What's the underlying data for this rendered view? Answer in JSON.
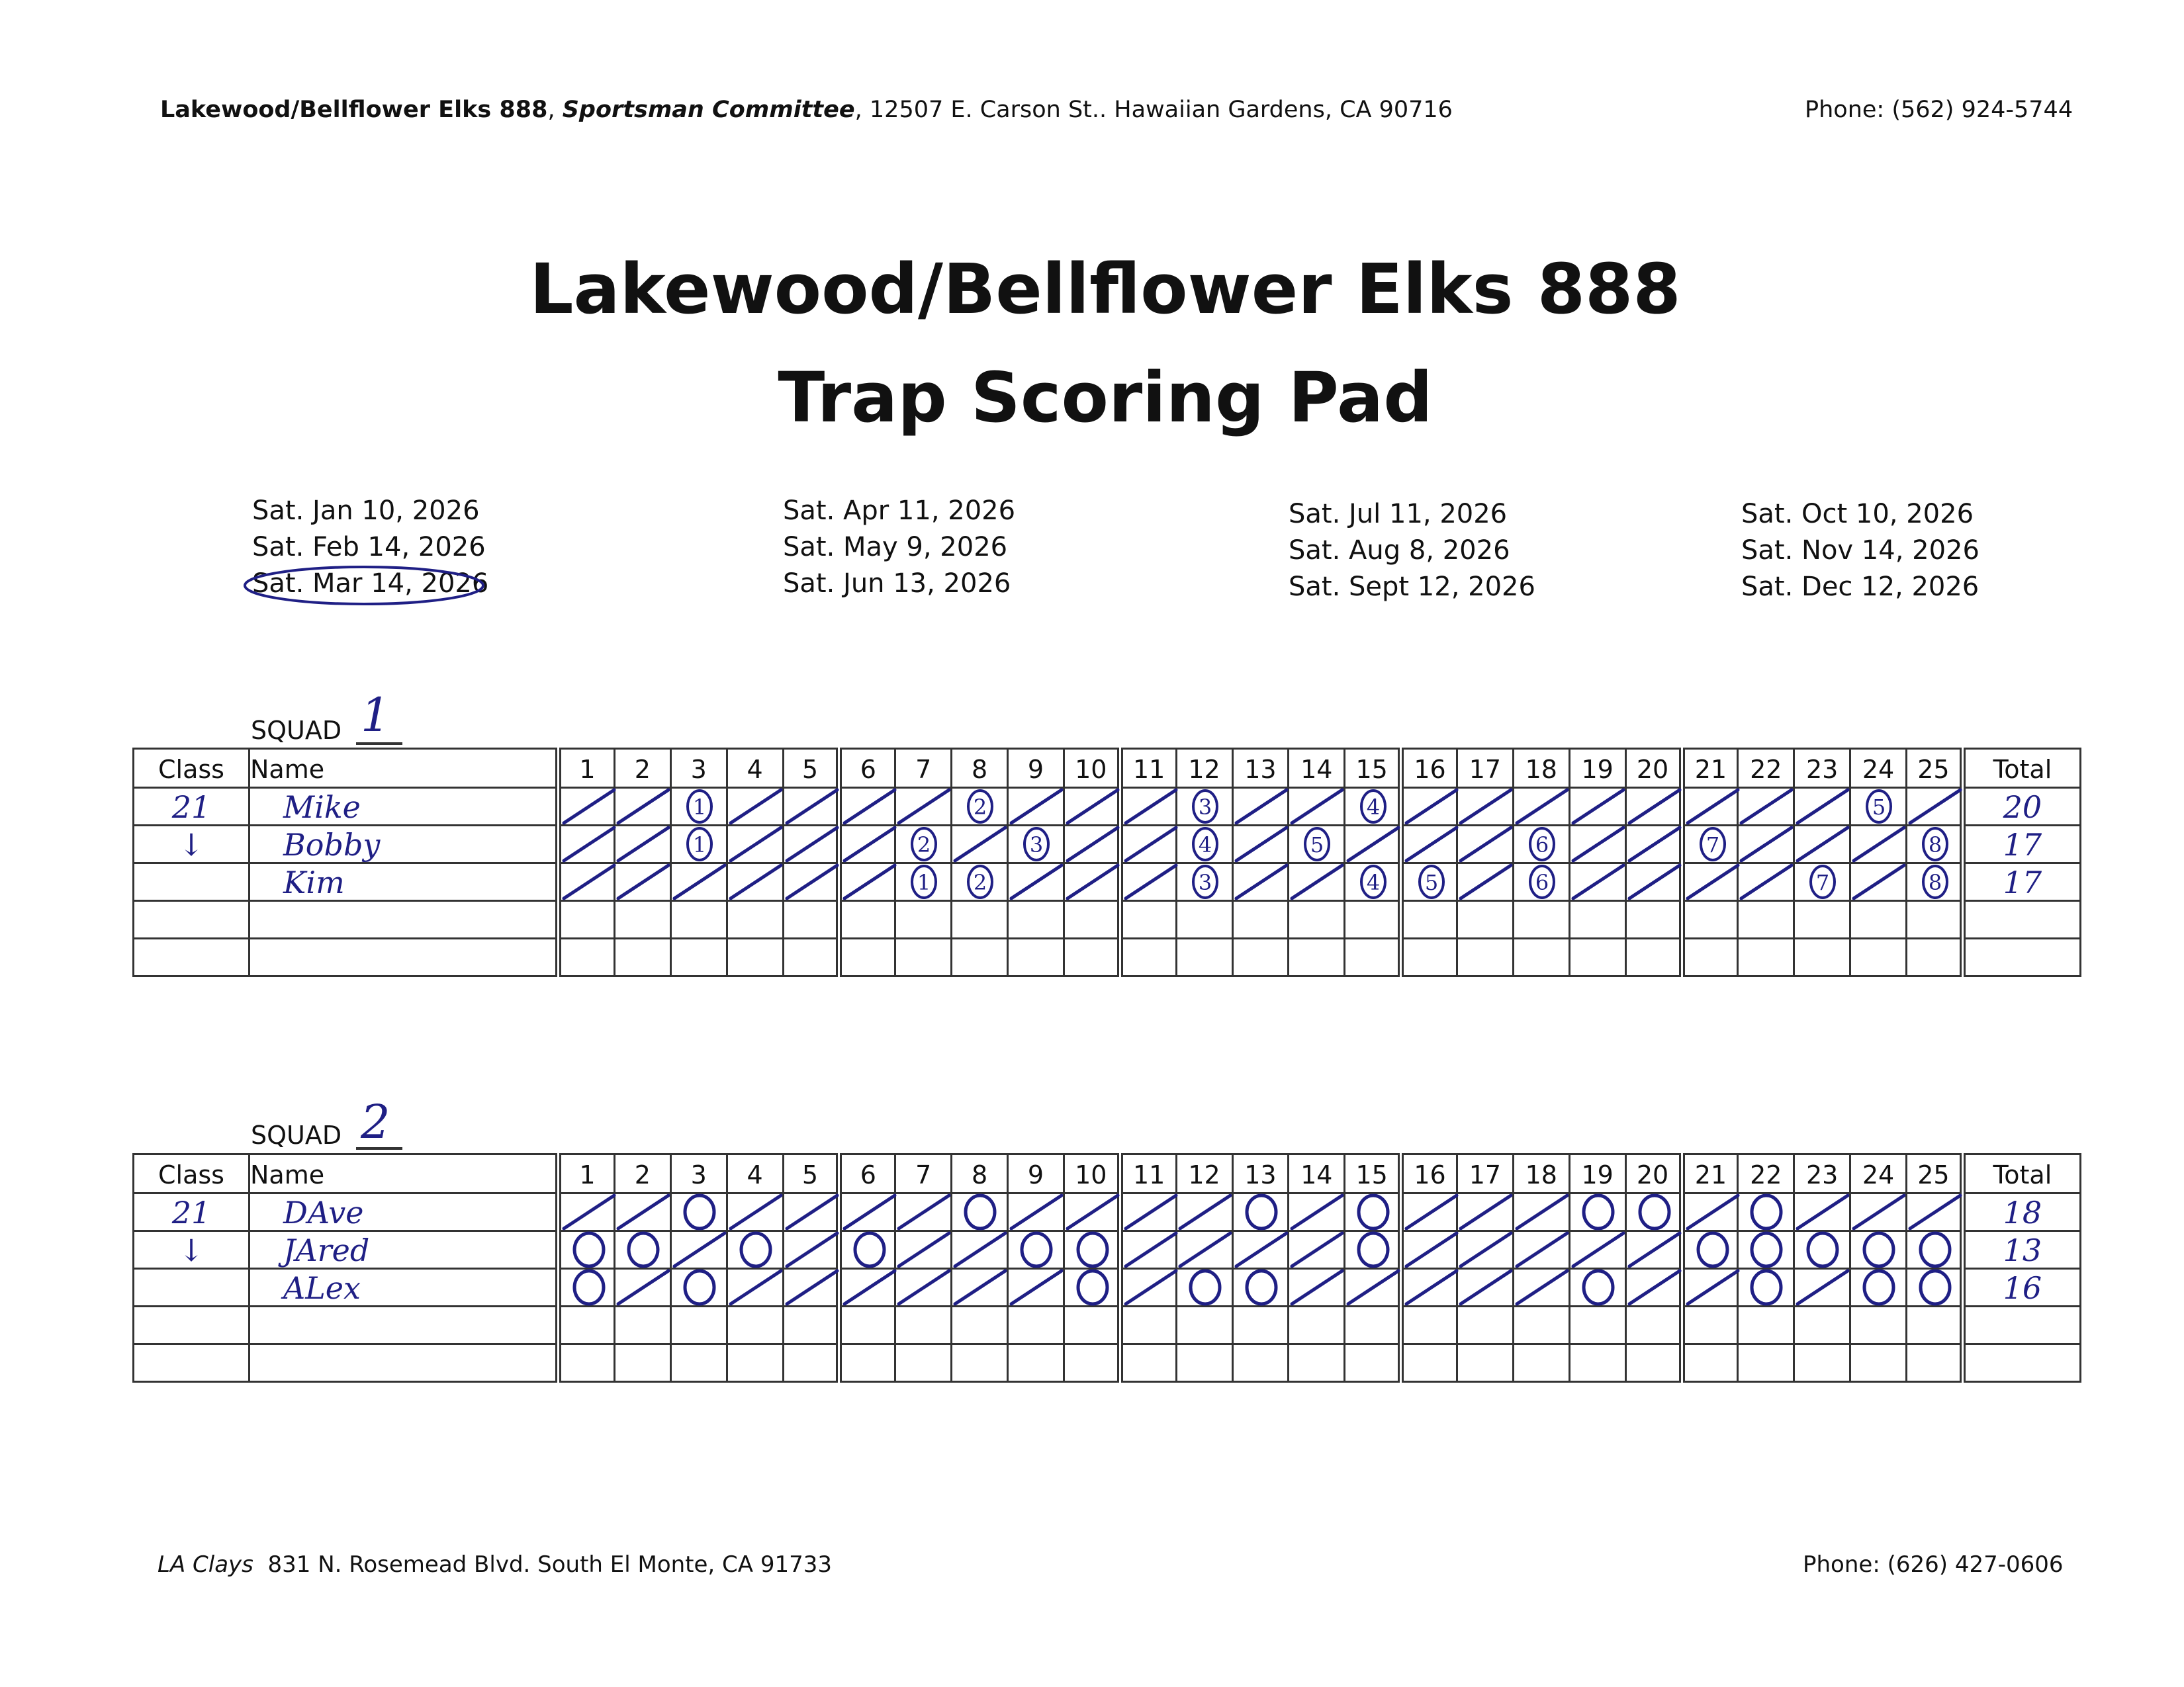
{
  "header": {
    "org": "Lakewood/Bellflower Elks 888",
    "committee": "Sportsman Committee",
    "address": "12507 E. Carson St.. Hawaiian Gardens, CA 90716",
    "phone": "Phone: (562) 924-5744"
  },
  "title": {
    "line1": "Lakewood/Bellflower Elks 888",
    "line2": "Trap Scoring Pad"
  },
  "dates": [
    [
      "Sat. Jan 10, 2026",
      "Sat. Feb 14, 2026",
      "Sat. Mar 14, 2026"
    ],
    [
      "Sat. Apr 11, 2026",
      "Sat. May 9, 2026",
      "Sat. Jun 13, 2026"
    ],
    [
      "Sat. Jul 11, 2026",
      "Sat. Aug 8, 2026",
      "Sat. Sept 12, 2026"
    ],
    [
      "Sat. Oct 10, 2026",
      "Sat. Nov 14, 2026",
      "Sat. Dec 12, 2026"
    ]
  ],
  "circled_date": "Sat. Mar 14, 2026",
  "ink_color": "#1f1f85",
  "columns": {
    "class": "Class",
    "name": "Name",
    "total": "Total",
    "targets": [
      "1",
      "2",
      "3",
      "4",
      "5",
      "6",
      "7",
      "8",
      "9",
      "10",
      "11",
      "12",
      "13",
      "14",
      "15",
      "16",
      "17",
      "18",
      "19",
      "20",
      "21",
      "22",
      "23",
      "24",
      "25"
    ]
  },
  "squads": [
    {
      "label": "SQUAD",
      "number": "1",
      "rows": [
        {
          "class": "21",
          "name": "Mike",
          "total": "20",
          "marks": [
            "/",
            "/",
            "1",
            "/",
            "/",
            "/",
            "/",
            "2",
            "/",
            "/",
            "/",
            "3",
            "/",
            "/",
            "4",
            "/",
            "/",
            "/",
            "/",
            "/",
            "/",
            "/",
            "/",
            "5",
            "/"
          ]
        },
        {
          "class": "↓",
          "name": "Bobby",
          "total": "17",
          "marks": [
            "/",
            "/",
            "1",
            "/",
            "/",
            "/",
            "2",
            "/",
            "3",
            "/",
            "/",
            "4",
            "/",
            "5",
            "/",
            "/",
            "/",
            "6",
            "/",
            "/",
            "7",
            "/",
            "/",
            "/",
            "8"
          ]
        },
        {
          "class": "",
          "name": "Kim",
          "total": "17",
          "marks": [
            "/",
            "/",
            "/",
            "/",
            "/",
            "/",
            "1",
            "2",
            "/",
            "/",
            "/",
            "3",
            "/",
            "/",
            "4",
            "5",
            "/",
            "6",
            "/",
            "/",
            "/",
            "/",
            "7",
            "/",
            "8"
          ]
        },
        {
          "class": "",
          "name": "",
          "total": "",
          "marks": []
        },
        {
          "class": "",
          "name": "",
          "total": "",
          "marks": []
        }
      ]
    },
    {
      "label": "SQUAD",
      "number": "2",
      "rows": [
        {
          "class": "21",
          "name": "DAve",
          "total": "18",
          "marks": [
            "/",
            "/",
            "O",
            "/",
            "/",
            "/",
            "/",
            "O",
            "/",
            "/",
            "/",
            "/",
            "O",
            "/",
            "O",
            "/",
            "/",
            "/",
            "O",
            "O",
            "/",
            "O",
            "/",
            "/",
            "/"
          ]
        },
        {
          "class": "↓",
          "name": "JAred",
          "total": "13",
          "marks": [
            "O",
            "O",
            "/",
            "O",
            "/",
            "O",
            "/",
            "/",
            "O",
            "O",
            "/",
            "/",
            "/",
            "/",
            "O",
            "/",
            "/",
            "/",
            "/",
            "/",
            "O",
            "O",
            "O",
            "O",
            "O"
          ]
        },
        {
          "class": "",
          "name": "ALex",
          "total": "16",
          "marks": [
            "O",
            "/",
            "O",
            "/",
            "/",
            "/",
            "/",
            "/",
            "/",
            "O",
            "/",
            "O",
            "O",
            "/",
            "/",
            "/",
            "/",
            "/",
            "O",
            "/",
            "/",
            "O",
            "/",
            "O",
            "O"
          ]
        },
        {
          "class": "",
          "name": "",
          "total": "",
          "marks": []
        },
        {
          "class": "",
          "name": "",
          "total": "",
          "marks": []
        }
      ]
    }
  ],
  "footer": {
    "venue": "LA Clays",
    "address": "831 N. Rosemead Blvd. South El Monte, CA 91733",
    "phone": "Phone: (626) 427-0606"
  }
}
